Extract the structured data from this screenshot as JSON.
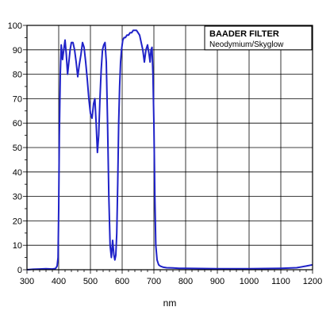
{
  "chart_data": {
    "type": "line",
    "title": "",
    "xlabel": "nm",
    "ylabel": "",
    "xlim": [
      300,
      1200
    ],
    "ylim": [
      0,
      100
    ],
    "x_ticks": [
      300,
      400,
      500,
      600,
      700,
      800,
      900,
      1000,
      1100,
      1200
    ],
    "y_ticks": [
      0,
      10,
      20,
      30,
      40,
      50,
      60,
      70,
      80,
      90,
      100
    ],
    "grid": true,
    "legend": {
      "position": "top-right",
      "title": "BAADER FILTER",
      "subtitle": "Neodymium/Skyglow"
    },
    "colors": {
      "series": "#1f22c8",
      "grid": "#000000",
      "axis": "#000000"
    },
    "series": [
      {
        "x": [
          300,
          320,
          340,
          360,
          380,
          390,
          395,
          398,
          400,
          402,
          405,
          408,
          412,
          416,
          420,
          424,
          428,
          432,
          436,
          440,
          445,
          450,
          455,
          460,
          465,
          470,
          475,
          480,
          485,
          490,
          495,
          500,
          505,
          510,
          514,
          518,
          522,
          526,
          530,
          534,
          538,
          542,
          546,
          550,
          554,
          558,
          562,
          566,
          570,
          574,
          577,
          580,
          583,
          586,
          589,
          592,
          595,
          598,
          602,
          606,
          610,
          615,
          620,
          625,
          630,
          635,
          640,
          645,
          650,
          655,
          660,
          665,
          670,
          675,
          680,
          685,
          688,
          691,
          694,
          697,
          700,
          703,
          706,
          710,
          715,
          720,
          730,
          740,
          760,
          780,
          800,
          850,
          900,
          950,
          1000,
          1050,
          1100,
          1150,
          1180,
          1200
        ],
        "y": [
          0,
          0.2,
          0.3,
          0.4,
          0.3,
          0.5,
          1.5,
          5,
          25,
          55,
          80,
          92,
          86,
          90,
          94,
          88,
          80,
          85,
          90,
          93,
          93,
          90,
          85,
          79,
          84,
          88,
          93,
          91,
          85,
          78,
          70,
          64,
          62,
          68,
          70,
          60,
          48,
          55,
          70,
          82,
          90,
          92,
          93,
          85,
          60,
          30,
          10,
          5,
          12,
          6,
          4,
          6,
          15,
          35,
          60,
          75,
          85,
          90,
          94,
          95,
          95,
          96,
          96,
          97,
          97,
          98,
          98,
          98,
          97,
          96,
          93,
          90,
          85,
          90,
          92,
          88,
          85,
          90,
          91,
          80,
          60,
          30,
          10,
          4,
          2,
          1.5,
          1,
          0.8,
          0.7,
          0.6,
          0.6,
          0.5,
          0.4,
          0.4,
          0.4,
          0.5,
          0.6,
          0.8,
          1.5,
          2
        ]
      }
    ]
  }
}
